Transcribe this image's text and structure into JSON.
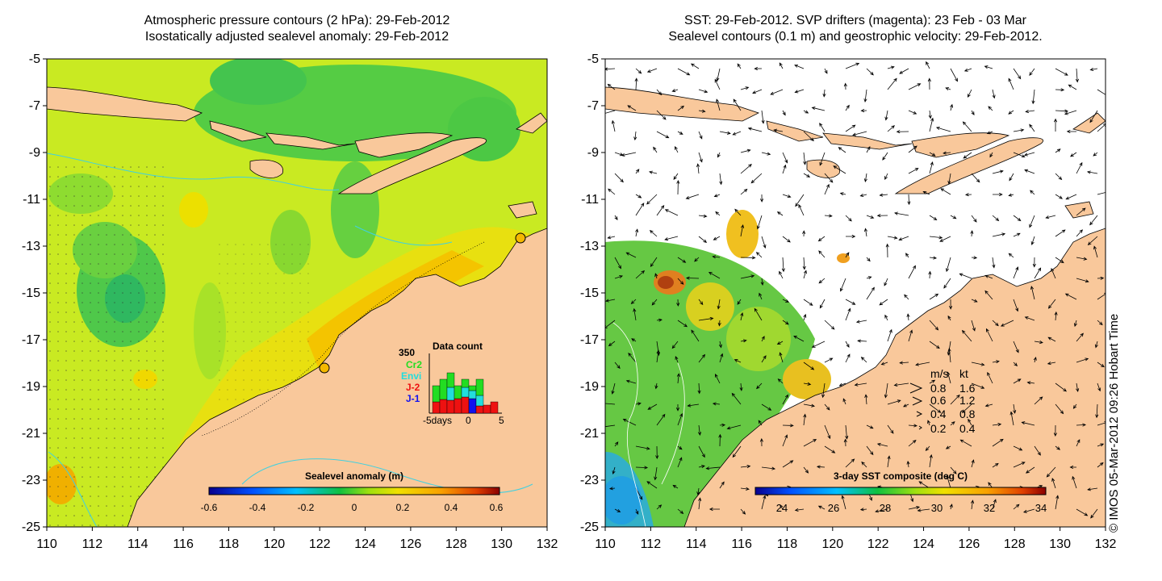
{
  "left_panel": {
    "title_line1": "Atmospheric pressure contours (2 hPa): 29-Feb-2012",
    "title_line2": "Isostatically adjusted sealevel anomaly: 29-Feb-2012",
    "colorbar_title": "Sealevel anomaly (m)",
    "colorbar_ticks": [
      "-0.6",
      "-0.4",
      "-0.2",
      "0",
      "0.2",
      "0.4",
      "0.6"
    ],
    "inset": {
      "title": "Data count",
      "max_label": "350",
      "legend": [
        {
          "label": "Cr2",
          "color": "#22dd22"
        },
        {
          "label": "Envi",
          "color": "#22dddd"
        },
        {
          "label": "J-2",
          "color": "#ee1111"
        },
        {
          "label": "J-1",
          "color": "#1111ee"
        }
      ],
      "x_labels": [
        "-5days",
        "0",
        "5"
      ]
    }
  },
  "right_panel": {
    "title_line1": "SST: 29-Feb-2012. SVP drifters (magenta): 23 Feb - 03 Mar",
    "title_line2": "Sealevel contours (0.1 m) and geostrophic velocity: 29-Feb-2012.",
    "colorbar_title": "3-day SST composite (deg C)",
    "colorbar_ticks": [
      "24",
      "26",
      "28",
      "30",
      "32",
      "34"
    ],
    "speed_legend": {
      "header_ms": "m/s",
      "header_kt": "kt",
      "rows": [
        {
          "ms": "0.8",
          "kt": "1.6"
        },
        {
          "ms": "0.6",
          "kt": "1.2"
        },
        {
          "ms": "0.4",
          "kt": "0.8"
        },
        {
          "ms": "0.2",
          "kt": "0.4"
        }
      ]
    }
  },
  "axes": {
    "x_ticks": [
      "110",
      "112",
      "114",
      "116",
      "118",
      "120",
      "122",
      "124",
      "126",
      "128",
      "130",
      "132"
    ],
    "y_ticks": [
      "-5",
      "-7",
      "-9",
      "-11",
      "-13",
      "-15",
      "-17",
      "-19",
      "-21",
      "-23",
      "-25"
    ]
  },
  "credit": "© IMOS 05-Mar-2012 09:26 Hobart Time",
  "colors": {
    "land": "#f9c89b",
    "sla_base": "#c7ea1f",
    "sst_land_mask": "#ffffff"
  }
}
